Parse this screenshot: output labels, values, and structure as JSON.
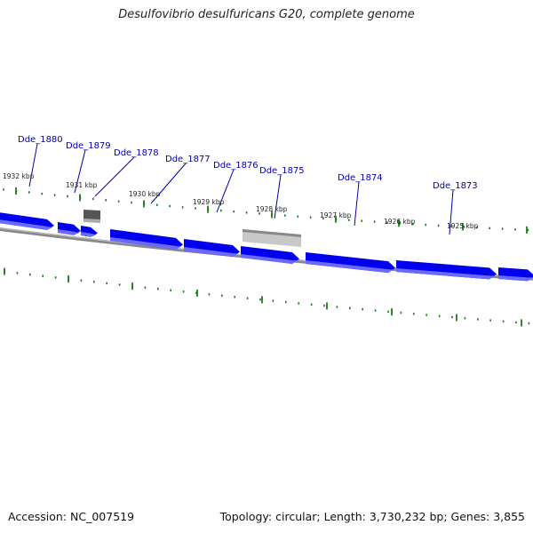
{
  "title": "Desulfovibrio desulfuricans G20, complete genome",
  "footer": {
    "accession": "Accession: NC_007519",
    "stats": "Topology: circular; Length: 3,730,232 bp; Genes: 3,855"
  },
  "colors": {
    "gene_fill": "#0000ee",
    "gene_highlight": "#6a6aff",
    "label_text": "#0000aa",
    "leader_line": "#0000aa",
    "tick_mark": "#1a7a1a",
    "backbone": "#888888",
    "feature_dark": "#555555",
    "feature_light": "#c8c8c8"
  },
  "gene_labels": [
    "Dde_1880",
    "Dde_1879",
    "Dde_1878",
    "Dde_1877",
    "Dde_1876",
    "Dde_1875",
    "Dde_1874",
    "Dde_1873"
  ],
  "kbp_labels": [
    "1932 kbp",
    "1931 kbp",
    "1930 kbp",
    "1929 kbp",
    "1928 kbp",
    "1927 kbp",
    "1926 kbp",
    "1925 kbp"
  ]
}
